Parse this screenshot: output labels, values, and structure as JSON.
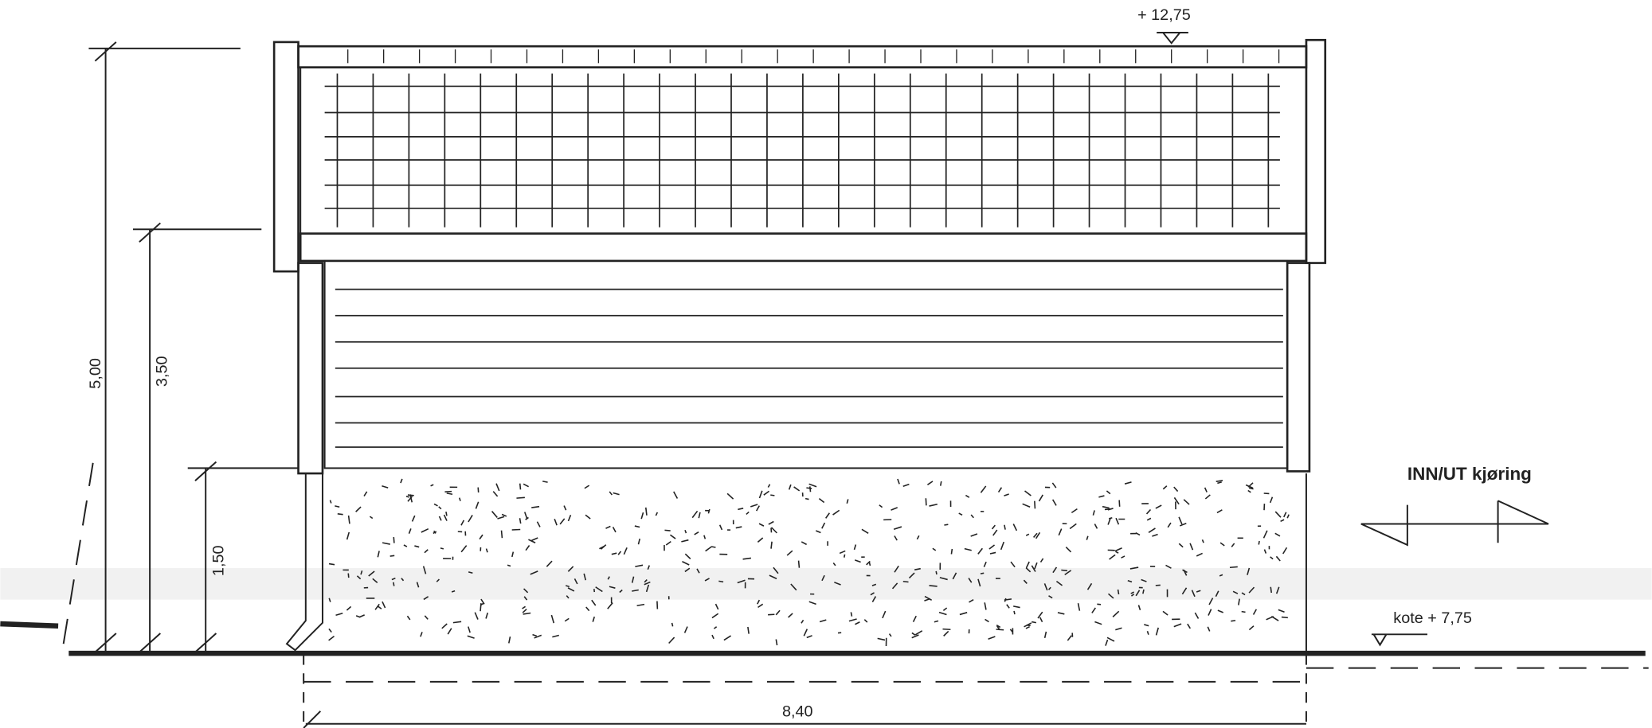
{
  "elevation_top": "+ 12,75",
  "dimensions": [
    "5,00",
    "3,50",
    "1,50"
  ],
  "entrance_label": "INN/UT kjøring",
  "ground_level": "kote + 7,75",
  "width": "8,40"
}
